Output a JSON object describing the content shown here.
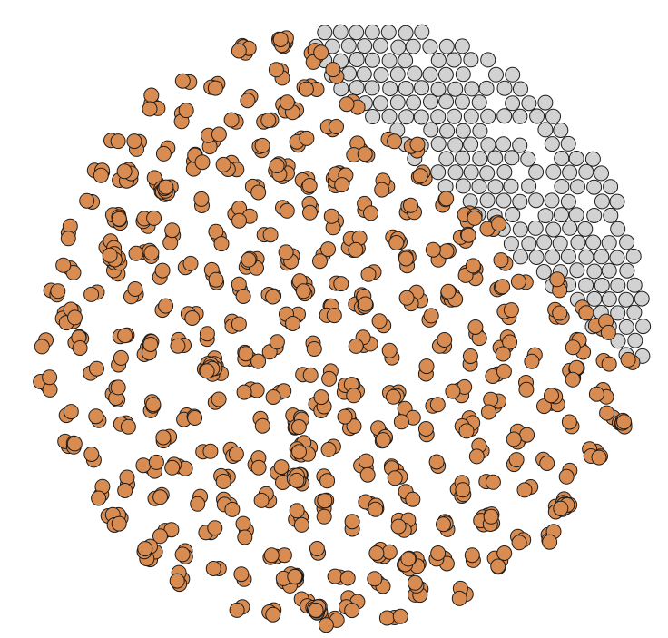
{
  "graph": {
    "node_colors": {
      "cluster": "#d98c52",
      "isolated": "#d2d2d2",
      "outline": "#1c1c1c"
    }
  }
}
